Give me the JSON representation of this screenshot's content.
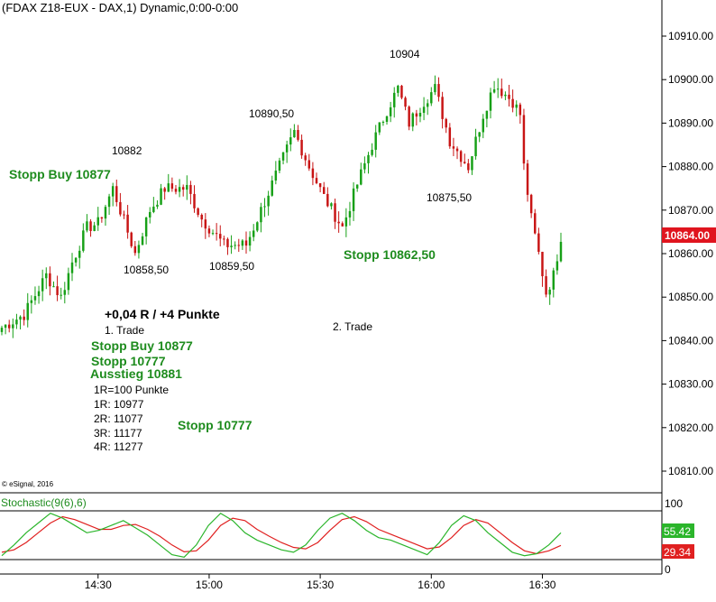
{
  "header": {
    "title": "(FDAX Z18-EUX - DAX,1) Dynamic,0:00-0:00"
  },
  "copyright": "© eSignal, 2016",
  "colors": {
    "up": "#17a017",
    "down": "#c81414",
    "green_text": "#1e8c1e",
    "last_badge": "#e0141e",
    "stoch_k": "#2bb52b",
    "stoch_d": "#e02020"
  },
  "price_axis": {
    "labels": [
      "10910.00",
      "10900.00",
      "10890.00",
      "10880.00",
      "10870.00",
      "10860.00",
      "10850.00",
      "10840.00",
      "10830.00",
      "10820.00",
      "10810.00"
    ],
    "last_price": "10864.00"
  },
  "time_axis": {
    "labels": [
      "14:30",
      "15:00",
      "15:30",
      "16:00",
      "16:30"
    ]
  },
  "annotations": {
    "high_10882": "10882",
    "high_10890": "10890,50",
    "high_10904": "10904",
    "low_10858": "10858,50",
    "low_10859": "10859,50",
    "low_10875": "10875,50",
    "stopp_buy_left": "Stopp Buy 10877",
    "stopp_10862": "Stopp 10862,50",
    "result": "+0,04 R / +4 Punkte",
    "trade1": "1. Trade",
    "trade2": "2. Trade",
    "stopp_buy": "Stopp Buy 10877",
    "stopp_10777_a": "Stopp 10777",
    "ausstieg": "Ausstieg 10881",
    "r1_def": "1R=100 Punkte",
    "r1": "1R: 10977",
    "r2": "2R: 11077",
    "r3": "3R: 11177",
    "r4": "4R: 11277",
    "stopp_10777_b": "Stopp 10777"
  },
  "stochastic": {
    "title": "Stochastic(9(6),6)",
    "axis_labels": [
      "100",
      "0"
    ],
    "k_value": "55.42",
    "d_value": "29.34"
  },
  "chart_data": {
    "type": "candlestick",
    "ylim": [
      10807,
      10917
    ],
    "x_start": "14:04",
    "x_end": "16:35",
    "interval_minutes": 1,
    "approx_path": [
      {
        "time": "14:04",
        "price": 10843
      },
      {
        "time": "14:10",
        "price": 10846
      },
      {
        "time": "14:16",
        "price": 10855
      },
      {
        "time": "14:20",
        "price": 10850
      },
      {
        "time": "14:23",
        "price": 10858
      },
      {
        "time": "14:27",
        "price": 10866
      },
      {
        "time": "14:30",
        "price": 10867
      },
      {
        "time": "14:34",
        "price": 10875
      },
      {
        "time": "14:38",
        "price": 10865
      },
      {
        "time": "14:40",
        "price": 10860
      },
      {
        "time": "14:44",
        "price": 10870
      },
      {
        "time": "14:48",
        "price": 10875
      },
      {
        "time": "14:54",
        "price": 10875
      },
      {
        "time": "14:58",
        "price": 10868
      },
      {
        "time": "15:04",
        "price": 10862
      },
      {
        "time": "15:10",
        "price": 10862
      },
      {
        "time": "15:14",
        "price": 10870
      },
      {
        "time": "15:20",
        "price": 10882
      },
      {
        "time": "15:23",
        "price": 10888
      },
      {
        "time": "15:27",
        "price": 10880
      },
      {
        "time": "15:31",
        "price": 10873
      },
      {
        "time": "15:36",
        "price": 10866
      },
      {
        "time": "15:40",
        "price": 10876
      },
      {
        "time": "15:44",
        "price": 10885
      },
      {
        "time": "15:48",
        "price": 10893
      },
      {
        "time": "15:51",
        "price": 10898
      },
      {
        "time": "15:54",
        "price": 10890
      },
      {
        "time": "15:58",
        "price": 10895
      },
      {
        "time": "16:01",
        "price": 10898
      },
      {
        "time": "16:05",
        "price": 10886
      },
      {
        "time": "16:10",
        "price": 10880
      },
      {
        "time": "16:14",
        "price": 10892
      },
      {
        "time": "16:17",
        "price": 10899
      },
      {
        "time": "16:22",
        "price": 10895
      },
      {
        "time": "16:24",
        "price": 10892
      },
      {
        "time": "16:25",
        "price": 10880
      },
      {
        "time": "16:27",
        "price": 10868
      },
      {
        "time": "16:29",
        "price": 10860
      },
      {
        "time": "16:31",
        "price": 10851
      },
      {
        "time": "16:33",
        "price": 10855
      },
      {
        "time": "16:35",
        "price": 10864
      }
    ],
    "stochastic_k": [
      8,
      30,
      55,
      75,
      95,
      85,
      70,
      55,
      60,
      70,
      80,
      65,
      50,
      30,
      10,
      5,
      30,
      70,
      95,
      80,
      55,
      40,
      30,
      20,
      15,
      30,
      60,
      85,
      95,
      80,
      60,
      45,
      40,
      30,
      20,
      10,
      35,
      70,
      90,
      80,
      55,
      35,
      15,
      8,
      12,
      30,
      55
    ],
    "stochastic_d": [
      15,
      20,
      35,
      55,
      75,
      88,
      82,
      72,
      62,
      62,
      70,
      72,
      62,
      48,
      30,
      16,
      18,
      40,
      70,
      85,
      80,
      62,
      48,
      35,
      25,
      22,
      35,
      60,
      82,
      88,
      78,
      62,
      52,
      42,
      32,
      22,
      26,
      45,
      70,
      82,
      75,
      55,
      35,
      18,
      12,
      18,
      29
    ]
  }
}
